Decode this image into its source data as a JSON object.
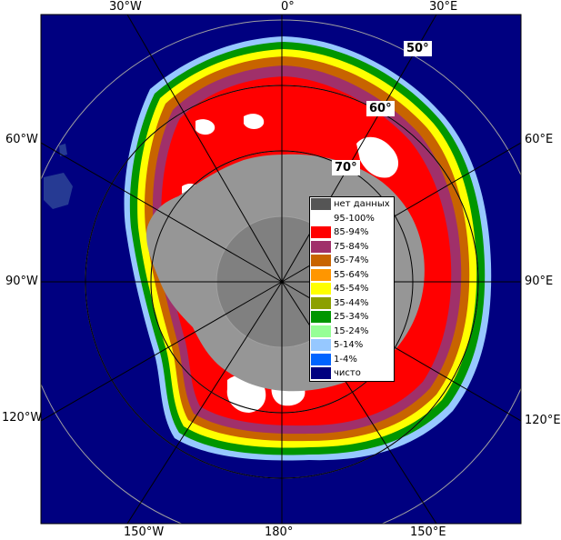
{
  "map": {
    "lon_labels": {
      "top": [
        "30°W",
        "0°",
        "30°E"
      ],
      "left": [
        "60°W",
        "90°W",
        "120°W"
      ],
      "right": [
        "60°E",
        "90°E",
        "120°E"
      ],
      "bottom": [
        "150°W",
        "180°",
        "150°E"
      ]
    },
    "lat_labels": [
      "50°",
      "60°",
      "70°"
    ]
  },
  "legend": {
    "items": [
      {
        "label": "нет данных",
        "color": "#555555"
      },
      {
        "label": "95-100%",
        "color": "#ffffff"
      },
      {
        "label": "85-94%",
        "color": "#ff0000"
      },
      {
        "label": "75-84%",
        "color": "#a0306a"
      },
      {
        "label": "65-74%",
        "color": "#c86400"
      },
      {
        "label": "55-64%",
        "color": "#ff9600"
      },
      {
        "label": "45-54%",
        "color": "#ffff00"
      },
      {
        "label": "35-44%",
        "color": "#8ca000"
      },
      {
        "label": "25-34%",
        "color": "#009600"
      },
      {
        "label": "15-24%",
        "color": "#96ff96"
      },
      {
        "label": "5-14%",
        "color": "#96c8ff"
      },
      {
        "label": "1-4%",
        "color": "#0064ff"
      },
      {
        "label": "чисто",
        "color": "#000080"
      }
    ]
  },
  "colors": {
    "ocean": "#000080",
    "land": "#969696",
    "grid": "#a0a0a0",
    "frame": "#000000"
  }
}
